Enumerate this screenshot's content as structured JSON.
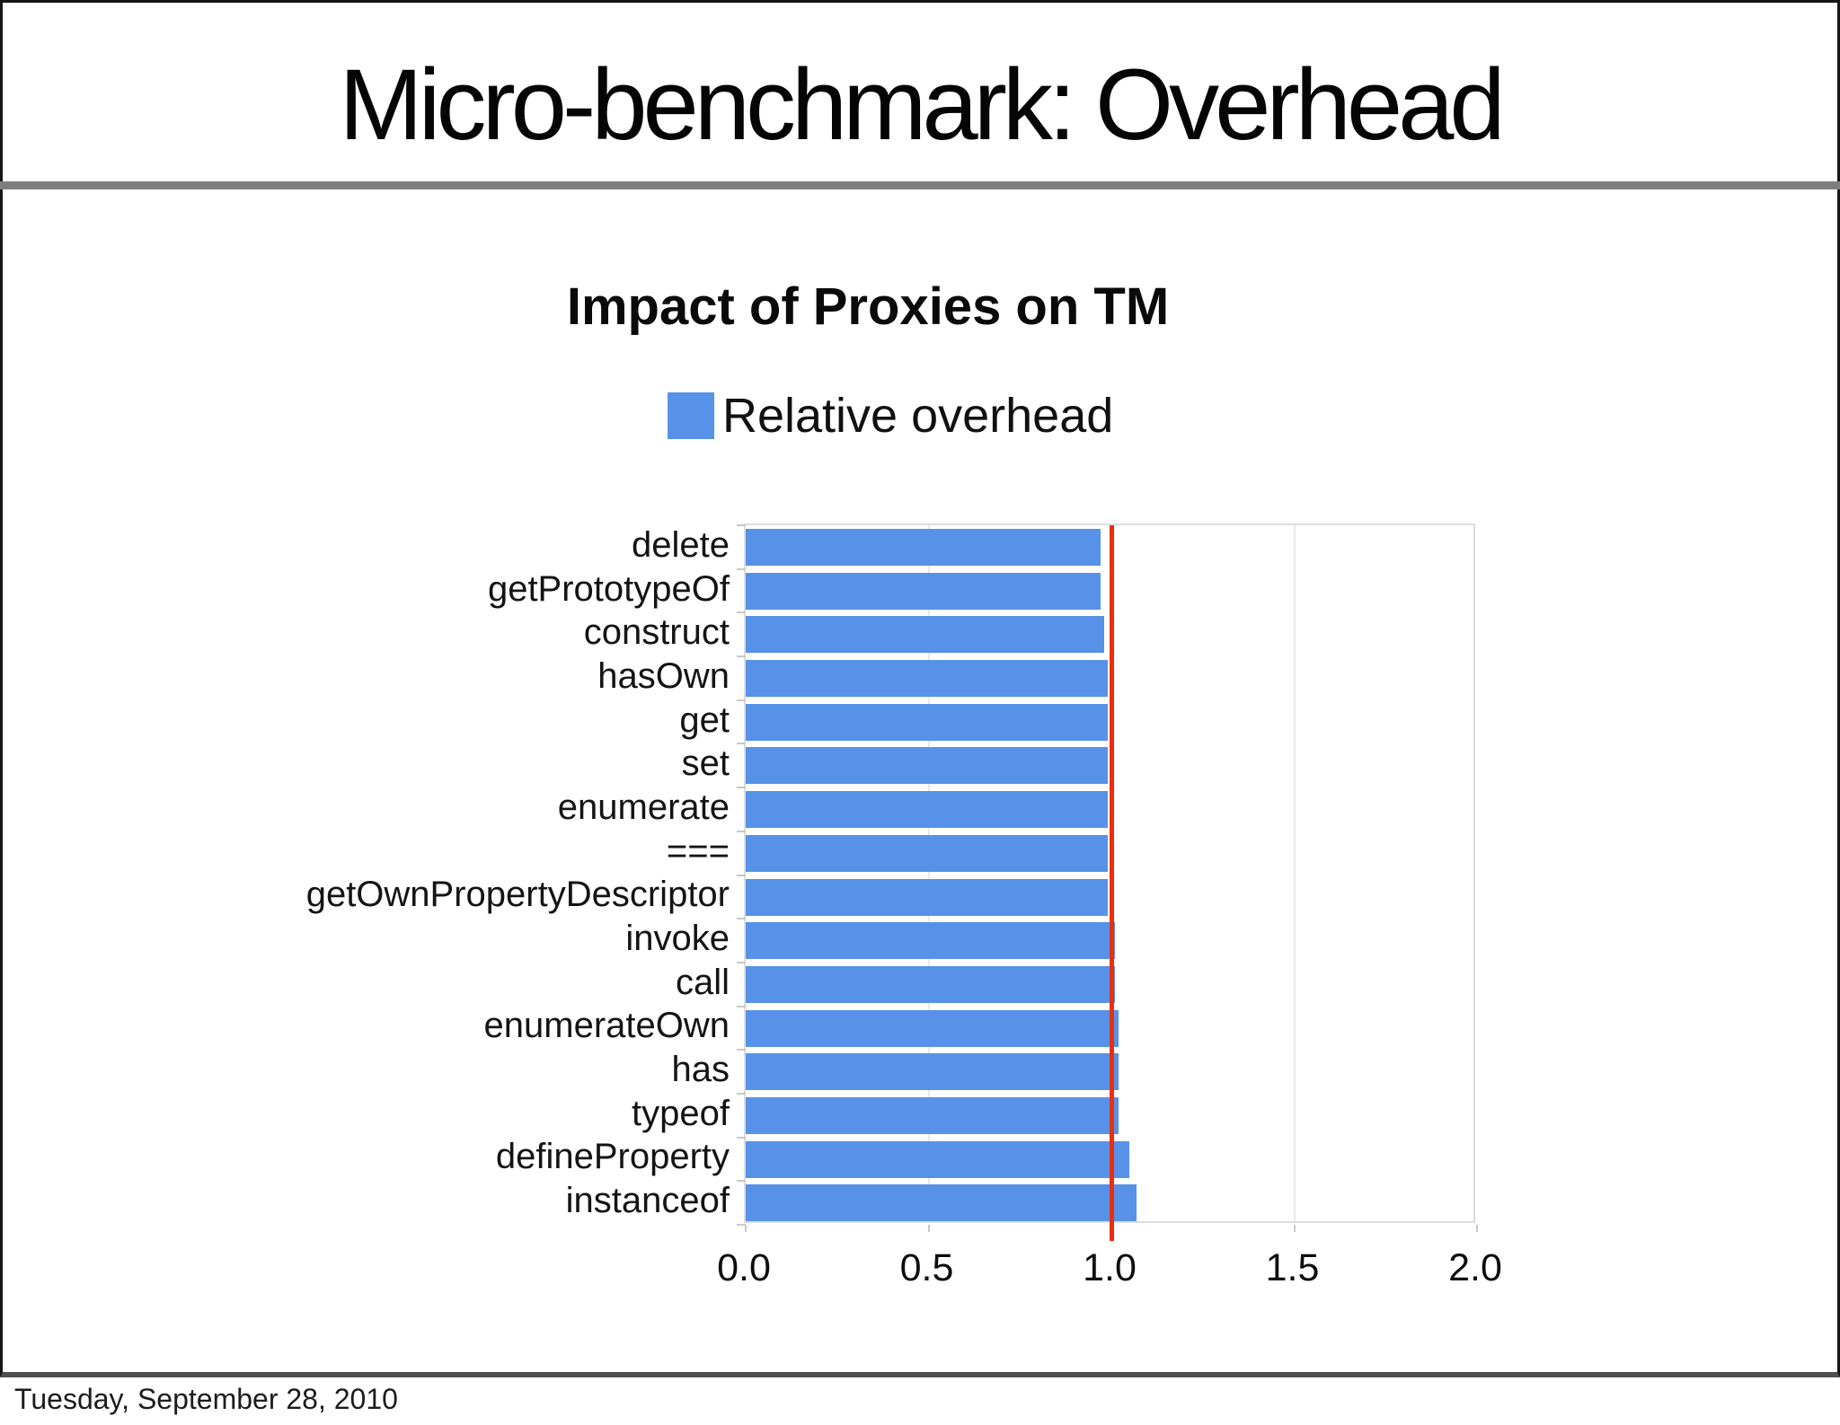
{
  "slide": {
    "title": "Micro-benchmark: Overhead"
  },
  "footer": {
    "date": "Tuesday, September 28, 2010"
  },
  "chart_data": {
    "type": "bar",
    "orientation": "horizontal",
    "title": "Impact of Proxies on TM",
    "legend": {
      "position": "top",
      "entries": [
        {
          "label": "Relative overhead",
          "color": "#5792e8"
        }
      ]
    },
    "categories": [
      "delete",
      "getPrototypeOf",
      "construct",
      "hasOwn",
      "get",
      "set",
      "enumerate",
      "===",
      "getOwnPropertyDescriptor",
      "invoke",
      "call",
      "enumerateOwn",
      "has",
      "typeof",
      "defineProperty",
      "instanceof"
    ],
    "values": [
      0.97,
      0.97,
      0.98,
      0.99,
      0.99,
      0.99,
      0.99,
      0.99,
      0.99,
      1.01,
      1.01,
      1.02,
      1.02,
      1.02,
      1.05,
      1.07
    ],
    "series_name": "Relative overhead",
    "xlabel": "",
    "ylabel": "",
    "xlim": [
      0,
      2
    ],
    "xticks": [
      {
        "value": 0,
        "label": "0.0"
      },
      {
        "value": 0.5,
        "label": "0.5"
      },
      {
        "value": 1,
        "label": "1.0"
      },
      {
        "value": 1.5,
        "label": "1.5"
      },
      {
        "value": 2,
        "label": "2.0"
      }
    ],
    "grid": true,
    "bar_color": "#5792e8",
    "reference_line": {
      "value": 1.0,
      "color": "#e8300c"
    }
  }
}
